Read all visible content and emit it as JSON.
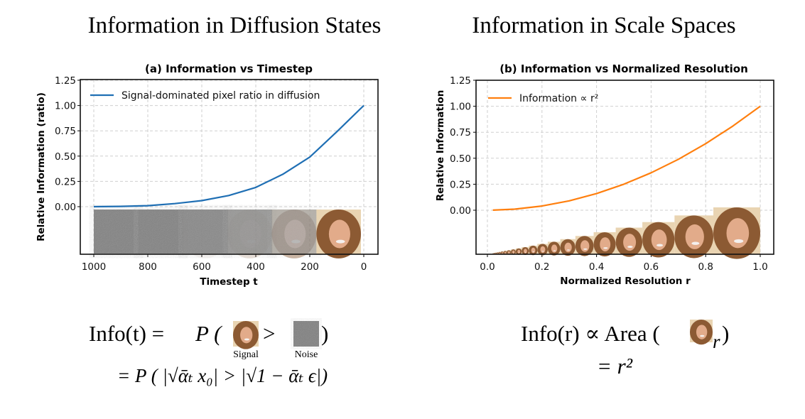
{
  "headers": {
    "left": "Information in Diffusion States",
    "right": "Information in Scale Spaces"
  },
  "chart_data": [
    {
      "type": "line",
      "title": "(a) Information vs Timestep",
      "xlabel": "Timestep t",
      "ylabel": "Relative Information (ratio)",
      "xlim": [
        1000,
        0
      ],
      "ylim": [
        0,
        1.25
      ],
      "x_reversed": true,
      "xticks": [
        "1000",
        "800",
        "600",
        "400",
        "200",
        "0"
      ],
      "yticks": [
        "0.00",
        "0.25",
        "0.50",
        "0.75",
        "1.00",
        "1.25"
      ],
      "grid": true,
      "legend_position": "top-left",
      "series": [
        {
          "name": "Signal-dominated pixel ratio in diffusion",
          "color": "#1f6fb4",
          "x": [
            1000,
            900,
            800,
            700,
            600,
            500,
            400,
            300,
            200,
            100,
            50,
            0
          ],
          "y": [
            0.0,
            0.003,
            0.01,
            0.03,
            0.06,
            0.11,
            0.19,
            0.32,
            0.49,
            0.74,
            0.87,
            1.0
          ]
        }
      ],
      "image_strip": "diffusion states from noise (t=1000) to clean image (t=0)"
    },
    {
      "type": "line",
      "title": "(b) Information vs Normalized Resolution",
      "xlabel": "Normalized Resolution r",
      "ylabel": "Relative Information",
      "xlim": [
        0,
        1
      ],
      "ylim": [
        0,
        1.25
      ],
      "xticks": [
        "0.0",
        "0.2",
        "0.4",
        "0.6",
        "0.8",
        "1.0"
      ],
      "yticks": [
        "0.00",
        "0.25",
        "0.50",
        "0.75",
        "1.00",
        "1.25"
      ],
      "grid": true,
      "legend_position": "top-left",
      "series": [
        {
          "name": "Information ∝ r²",
          "color": "#ff7f0e",
          "x": [
            0.02,
            0.1,
            0.2,
            0.3,
            0.4,
            0.5,
            0.6,
            0.7,
            0.8,
            0.9,
            1.0
          ],
          "y": [
            0.0004,
            0.01,
            0.04,
            0.09,
            0.16,
            0.25,
            0.36,
            0.49,
            0.64,
            0.81,
            1.0
          ]
        }
      ],
      "image_strip": "image pyramid at increasing resolutions"
    }
  ],
  "formulas": {
    "left_line1_lhs": "Info(t) = ",
    "left_line1_p": "P (",
    "left_gt": ">",
    "left_close": ")",
    "signal_label": "Signal",
    "noise_label": "Noise",
    "left_line2": "= P ( |√ᾱₜ x₀| > |√1 − ᾱₜ ϵ|)",
    "right_line1": "Info(r) ∝ Area (",
    "right_sub": "r",
    "right_close": ")",
    "right_line2": "= r²"
  }
}
